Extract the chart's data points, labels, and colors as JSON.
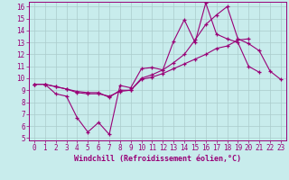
{
  "xlabel": "Windchill (Refroidissement éolien,°C)",
  "x": [
    0,
    1,
    2,
    3,
    4,
    5,
    6,
    7,
    8,
    9,
    10,
    11,
    12,
    13,
    14,
    15,
    16,
    17,
    18,
    19,
    20,
    21,
    22,
    23
  ],
  "line1_y": [
    9.5,
    9.5,
    8.7,
    8.5,
    6.7,
    5.5,
    6.3,
    5.3,
    9.4,
    9.2,
    10.8,
    10.9,
    10.7,
    13.1,
    14.9,
    13.0,
    16.3,
    13.7,
    13.3,
    13.0,
    11.0,
    10.5,
    null,
    null
  ],
  "line2_y": [
    9.5,
    9.5,
    9.3,
    9.1,
    8.9,
    8.8,
    8.8,
    8.4,
    9.0,
    9.0,
    9.9,
    10.1,
    10.4,
    10.8,
    11.2,
    11.6,
    12.0,
    12.5,
    12.7,
    13.2,
    13.3,
    null,
    null,
    null
  ],
  "line3_y": [
    9.5,
    9.5,
    9.3,
    9.1,
    8.8,
    8.7,
    8.7,
    8.5,
    8.9,
    9.0,
    10.0,
    10.3,
    10.7,
    11.3,
    12.0,
    13.2,
    14.5,
    15.3,
    16.0,
    13.3,
    12.9,
    12.3,
    10.6,
    9.9
  ],
  "bg_color": "#c8ecec",
  "grid_color": "#aacccc",
  "line_color": "#990077",
  "ylim_min": 4.8,
  "ylim_max": 16.4,
  "xlim_min": -0.5,
  "xlim_max": 23.5,
  "yticks": [
    5,
    6,
    7,
    8,
    9,
    10,
    11,
    12,
    13,
    14,
    15,
    16
  ],
  "xticks": [
    0,
    1,
    2,
    3,
    4,
    5,
    6,
    7,
    8,
    9,
    10,
    11,
    12,
    13,
    14,
    15,
    16,
    17,
    18,
    19,
    20,
    21,
    22,
    23
  ],
  "tick_fontsize": 5.5,
  "xlabel_fontsize": 6.0
}
